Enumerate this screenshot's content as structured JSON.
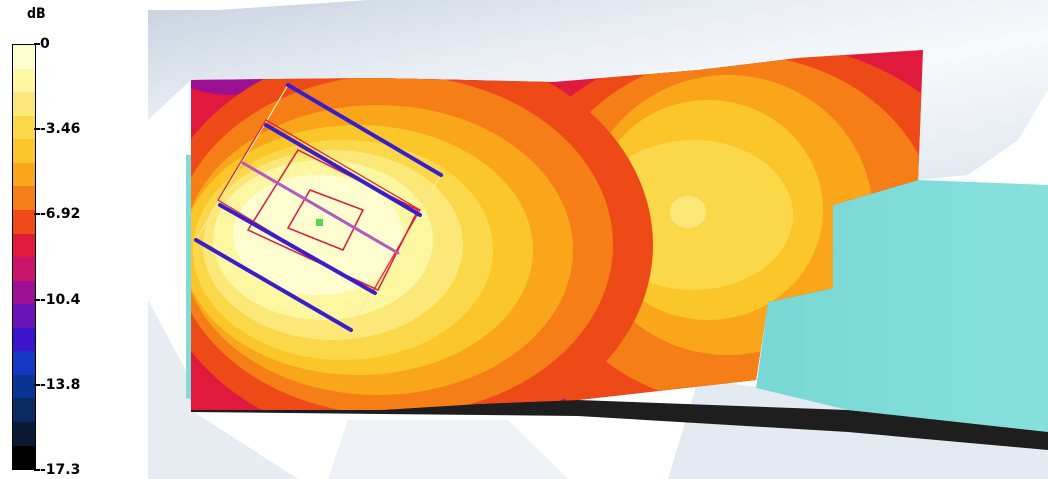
{
  "legend": {
    "unit": "dB",
    "ticks": [
      "0",
      "-3.46",
      "-6.92",
      "-10.4",
      "-13.8",
      "-17.3"
    ],
    "bands": [
      "#fdfdd0",
      "#fcf7a0",
      "#fbe879",
      "#fbd84a",
      "#fbc62a",
      "#f9a61a",
      "#f57f16",
      "#ee4a18",
      "#e01a3c",
      "#c8146a",
      "#9d1094",
      "#6a14b8",
      "#3c14cc",
      "#1438c4",
      "#0a3494",
      "#0a2a60",
      "#0a1a34",
      "#000000"
    ]
  },
  "scene": {
    "surface_colors": {
      "background": "#dde6ef",
      "cyan_surface": "#7fdcd8",
      "dark_strip": "#1e1e1e",
      "antenna_bar": "#3a1ec8",
      "antenna_outline": "#e01a3c"
    }
  }
}
